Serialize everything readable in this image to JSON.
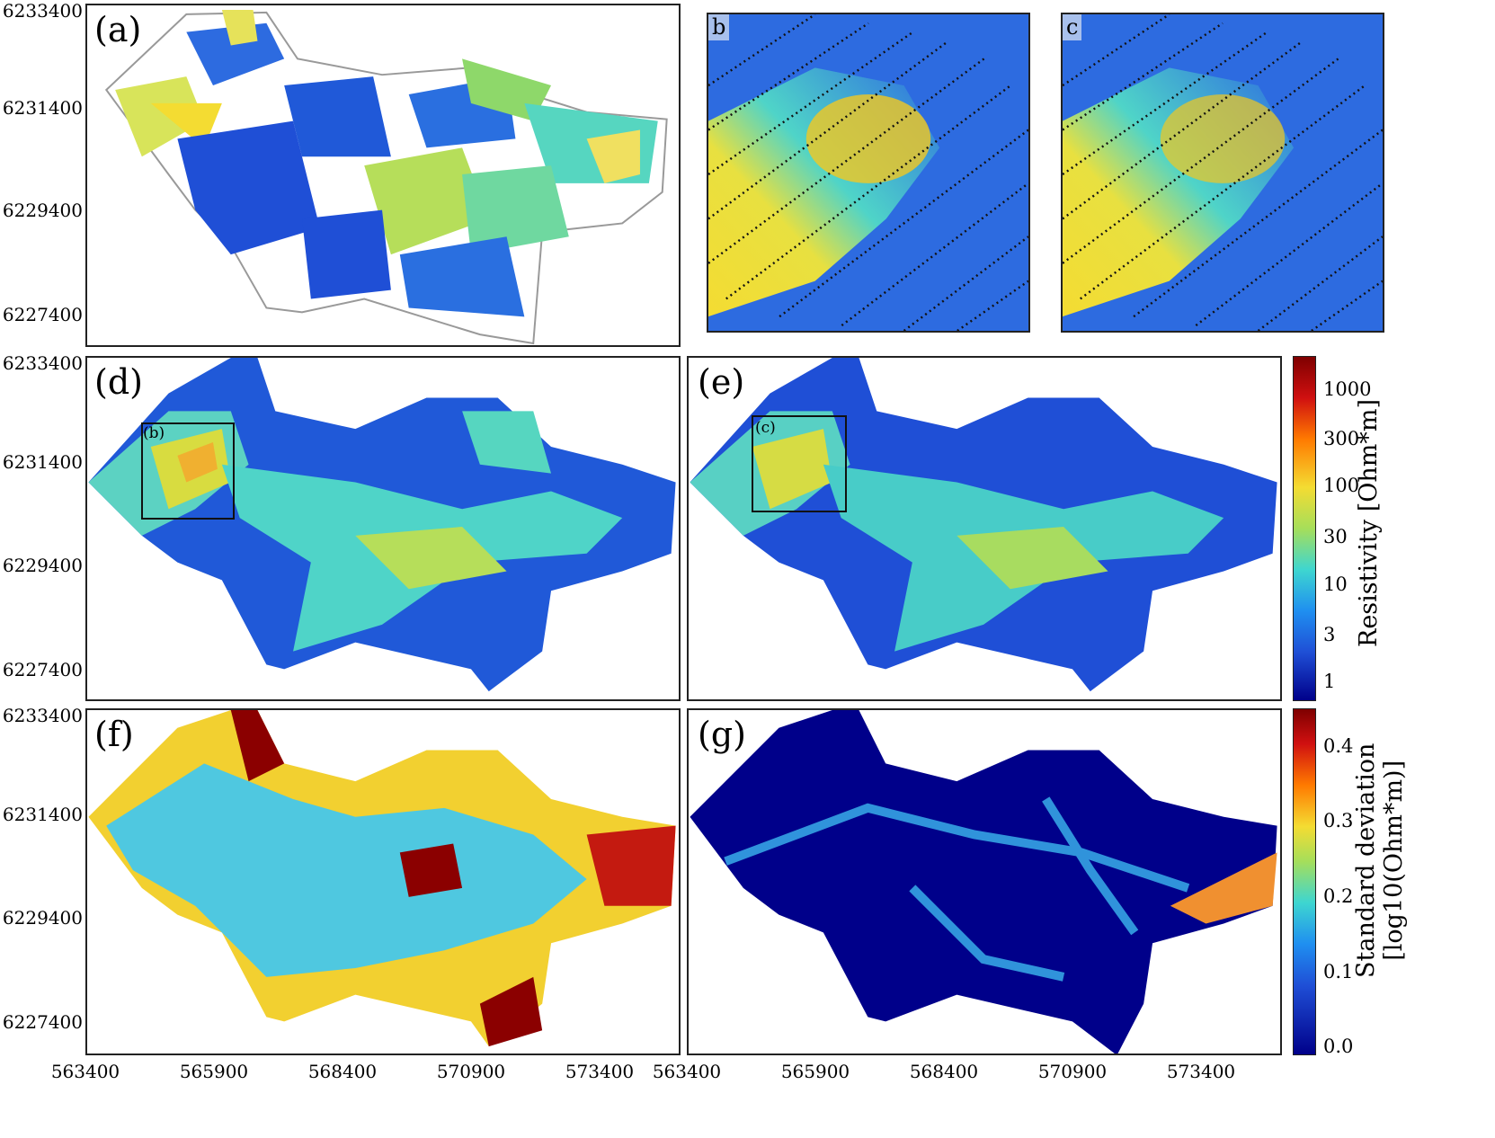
{
  "panels": {
    "a": {
      "label": "(a)"
    },
    "b": {
      "label": "b"
    },
    "c": {
      "label": "c"
    },
    "d": {
      "label": "(d)",
      "inset_label": "(b)"
    },
    "e": {
      "label": "(e)",
      "inset_label": "(c)"
    },
    "f": {
      "label": "(f)"
    },
    "g": {
      "label": "(g)"
    }
  },
  "axes": {
    "y_ticks": [
      "6233400",
      "6231400",
      "6229400",
      "6227400"
    ],
    "x_ticks": [
      "563400",
      "565900",
      "568400",
      "570900",
      "573400"
    ]
  },
  "colorbars": {
    "resistivity": {
      "title": "Resistivity [Ohm*m]",
      "ticks": [
        "1000",
        "300",
        "100",
        "30",
        "10",
        "3",
        "1"
      ]
    },
    "std": {
      "title_line1": "Standard deviation",
      "title_line2": "[log10(Ohm*m)]",
      "ticks": [
        "0.4",
        "0.3",
        "0.2",
        "0.1",
        "0.0"
      ]
    }
  },
  "colors": {
    "map_low": "#1f4fd6",
    "map_mid": "#4fd4c8",
    "map_high": "#f4dc32",
    "std_low": "#00006e",
    "std_high": "#8b0000"
  }
}
